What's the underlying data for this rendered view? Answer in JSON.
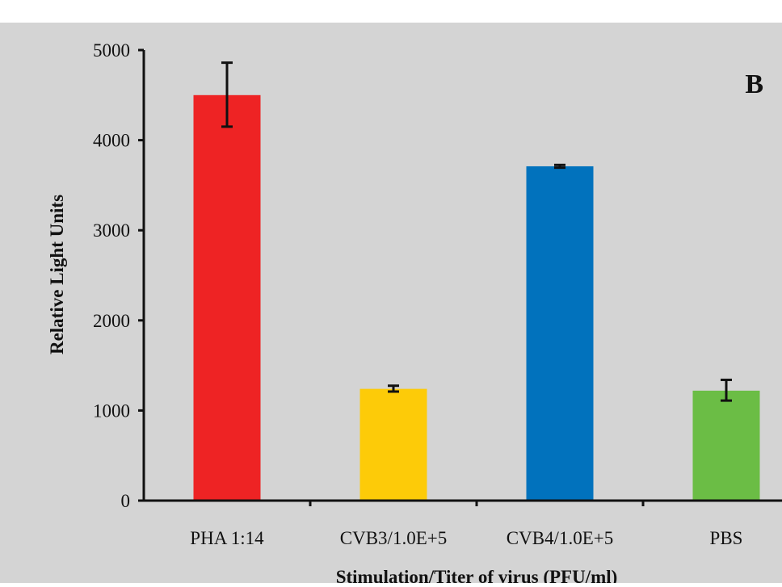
{
  "colors": {
    "page_background": "#ffffff",
    "plot_background": "#d4d4d4",
    "axis": "#111111"
  },
  "chart_data": {
    "type": "bar",
    "panel_label": "B",
    "ylabel": "Relative Light Units",
    "xlabel": "Stimulation/Titer of virus (PFU/ml)",
    "categories": [
      "PHA 1:14",
      "CVB3/1.0E+5",
      "CVB4/1.0E+5",
      "PBS"
    ],
    "values": [
      4500,
      1240,
      3710,
      1220
    ],
    "error_low": [
      4150,
      1210,
      3695,
      1110
    ],
    "error_high": [
      4860,
      1275,
      3725,
      1340
    ],
    "bar_colors": [
      "#ee2324",
      "#fdcb08",
      "#0172bd",
      "#6bbd45"
    ],
    "ylim": [
      0,
      5000
    ],
    "yticks": [
      0,
      1000,
      2000,
      3000,
      4000,
      5000
    ],
    "ytick_labels": [
      "0",
      "1000",
      "2000",
      "3000",
      "4000",
      "5000"
    ],
    "grid": false,
    "legend": false
  }
}
